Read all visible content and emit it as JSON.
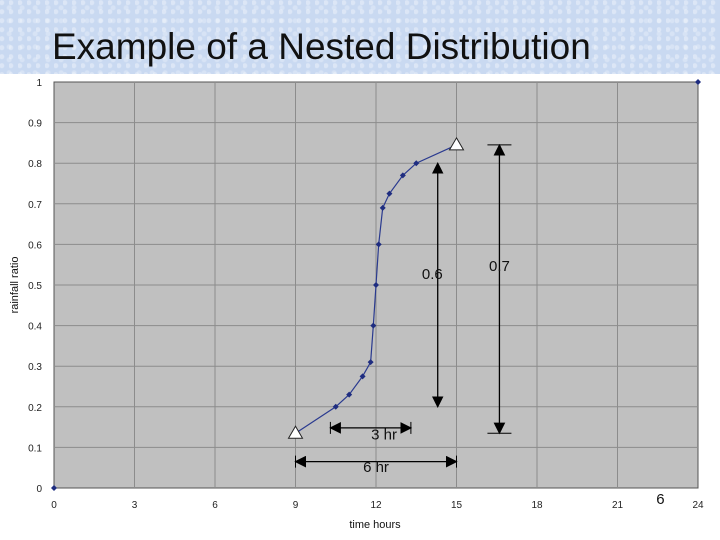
{
  "slide": {
    "title": "Example of a Nested Distribution"
  },
  "chart_data": {
    "type": "line",
    "xlabel": "time  hours",
    "ylabel": "rainfall ratio",
    "xlim": [
      0,
      24
    ],
    "ylim": [
      0,
      1
    ],
    "x_ticks": [
      "0",
      "3",
      "6",
      "9",
      "12",
      "15",
      "18",
      "21",
      "24"
    ],
    "y_ticks": [
      "0",
      "0.1",
      "0.2",
      "0.3",
      "0.4",
      "0.5",
      "0.6",
      "0.7",
      "0.8",
      "0.9",
      "1"
    ],
    "grid": true,
    "series": [
      {
        "x": [
          9,
          10.5,
          11,
          11.5,
          11.8,
          11.9,
          12,
          12.1,
          12.25,
          12.5,
          13,
          13.5,
          15
        ],
        "y": [
          0.135,
          0.2,
          0.23,
          0.275,
          0.31,
          0.4,
          0.5,
          0.6,
          0.69,
          0.725,
          0.77,
          0.8,
          0.845
        ]
      }
    ],
    "isolated_points": [
      {
        "x": 0,
        "y": 0
      },
      {
        "x": 24,
        "y": 1
      }
    ],
    "triangle_markers": [
      {
        "x": 9,
        "y": 0.135
      },
      {
        "x": 15,
        "y": 0.845
      }
    ],
    "annotations": [
      {
        "text": "0.6",
        "x": 14.1,
        "y": 0.515
      },
      {
        "text": "0.7",
        "x": 16.6,
        "y": 0.535
      },
      {
        "text": "3 hr",
        "x": 12.3,
        "y": 0.12
      },
      {
        "text": "6 hr",
        "x": 12.0,
        "y": 0.04
      },
      {
        "text": "6",
        "x": 22.6,
        "y": -0.04
      }
    ],
    "arrows": [
      {
        "name": "arrow-0-6",
        "x1": 14.3,
        "y1": 0.2,
        "x2": 14.3,
        "y2": 0.8,
        "heads": "both"
      },
      {
        "name": "arrow-0-7",
        "x1": 16.6,
        "y1": 0.135,
        "x2": 16.6,
        "y2": 0.845,
        "heads": "both"
      },
      {
        "name": "arrow-3hr",
        "x1": 10.3,
        "y1": 0.148,
        "x2": 13.3,
        "y2": 0.148,
        "heads": "both"
      },
      {
        "name": "arrow-6hr",
        "x1": 9,
        "y1": 0.065,
        "x2": 15,
        "y2": 0.065,
        "heads": "both"
      }
    ],
    "colors": {
      "line": "#2a3a8f",
      "marker": "#1f2d80",
      "grid": "#8c8c8c",
      "background": "#c0c0c0"
    }
  }
}
